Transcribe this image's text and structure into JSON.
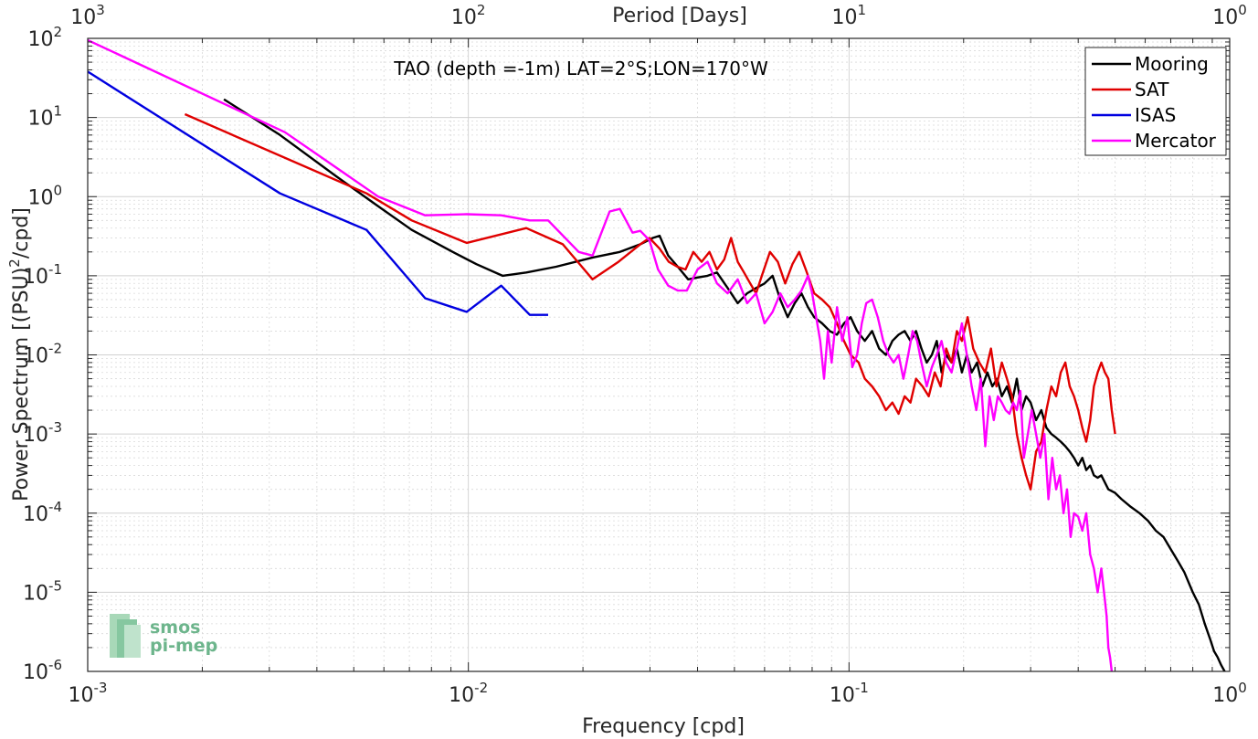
{
  "chart_data": {
    "type": "line",
    "title": "TAO (depth =-1m) LAT=2°S;LON=170°W",
    "xlabel": "Frequency [cpd]",
    "ylabel": "Power Spectrum [(PSU)",
    "ylabel_sup": "2",
    "ylabel_tail": "/cpd]",
    "top_xlabel": "Period [Days]",
    "x_scale": "log",
    "y_scale": "log",
    "xlim": [
      0.001,
      1
    ],
    "ylim": [
      1e-06,
      100
    ],
    "grid": true,
    "legend_position": "top-right",
    "x_ticks": [
      {
        "base": "10",
        "exp": "-3",
        "value": 0.001
      },
      {
        "base": "10",
        "exp": "-2",
        "value": 0.01
      },
      {
        "base": "10",
        "exp": "-1",
        "value": 0.1
      },
      {
        "base": "10",
        "exp": "0",
        "value": 1
      }
    ],
    "top_x_ticks": [
      {
        "base": "10",
        "exp": "3",
        "value": 0.001
      },
      {
        "base": "10",
        "exp": "2",
        "value": 0.01
      },
      {
        "base": "10",
        "exp": "1",
        "value": 0.1
      },
      {
        "base": "10",
        "exp": "0",
        "value": 1
      }
    ],
    "y_ticks": [
      {
        "base": "10",
        "exp": "2",
        "value": 100
      },
      {
        "base": "10",
        "exp": "1",
        "value": 10
      },
      {
        "base": "10",
        "exp": "0",
        "value": 1
      },
      {
        "base": "10",
        "exp": "-1",
        "value": 0.1
      },
      {
        "base": "10",
        "exp": "-2",
        "value": 0.01
      },
      {
        "base": "10",
        "exp": "-3",
        "value": 0.001
      },
      {
        "base": "10",
        "exp": "-4",
        "value": 0.0001
      },
      {
        "base": "10",
        "exp": "-5",
        "value": 1e-05
      },
      {
        "base": "10",
        "exp": "-6",
        "value": 1e-06
      }
    ],
    "series": [
      {
        "name": "Mooring",
        "color": "#000000",
        "x": [
          0.00228,
          0.0032,
          0.0045,
          0.0057,
          0.0071,
          0.0091,
          0.0105,
          0.0123,
          0.0142,
          0.017,
          0.0212,
          0.025,
          0.0283,
          0.0305,
          0.0318,
          0.0335,
          0.0355,
          0.0378,
          0.04,
          0.0425,
          0.045,
          0.048,
          0.051,
          0.054,
          0.057,
          0.06,
          0.063,
          0.066,
          0.069,
          0.072,
          0.075,
          0.078,
          0.081,
          0.085,
          0.089,
          0.093,
          0.097,
          0.101,
          0.105,
          0.11,
          0.115,
          0.12,
          0.125,
          0.13,
          0.135,
          0.14,
          0.145,
          0.15,
          0.155,
          0.16,
          0.165,
          0.17,
          0.175,
          0.18,
          0.186,
          0.192,
          0.198,
          0.204,
          0.21,
          0.217,
          0.224,
          0.231,
          0.238,
          0.245,
          0.252,
          0.26,
          0.268,
          0.276,
          0.284,
          0.292,
          0.3,
          0.31,
          0.32,
          0.33,
          0.34,
          0.35,
          0.36,
          0.37,
          0.38,
          0.39,
          0.4,
          0.41,
          0.42,
          0.43,
          0.44,
          0.45,
          0.46,
          0.48,
          0.5,
          0.52,
          0.55,
          0.58,
          0.61,
          0.64,
          0.67,
          0.7,
          0.73,
          0.76,
          0.8,
          0.83,
          0.86,
          0.89,
          0.91,
          0.93,
          0.95,
          0.97
        ],
        "y": [
          17,
          6,
          1.8,
          0.8,
          0.38,
          0.2,
          0.14,
          0.1,
          0.11,
          0.13,
          0.17,
          0.2,
          0.25,
          0.3,
          0.32,
          0.18,
          0.13,
          0.09,
          0.095,
          0.1,
          0.11,
          0.07,
          0.045,
          0.06,
          0.07,
          0.08,
          0.1,
          0.05,
          0.03,
          0.045,
          0.06,
          0.04,
          0.03,
          0.025,
          0.02,
          0.018,
          0.025,
          0.03,
          0.02,
          0.015,
          0.02,
          0.012,
          0.01,
          0.015,
          0.018,
          0.02,
          0.015,
          0.02,
          0.012,
          0.008,
          0.01,
          0.015,
          0.006,
          0.01,
          0.008,
          0.012,
          0.006,
          0.01,
          0.006,
          0.008,
          0.004,
          0.006,
          0.004,
          0.005,
          0.003,
          0.004,
          0.0025,
          0.005,
          0.002,
          0.003,
          0.0025,
          0.0015,
          0.002,
          0.0012,
          0.001,
          0.0009,
          0.0008,
          0.0007,
          0.0006,
          0.0005,
          0.0004,
          0.0005,
          0.00035,
          0.0004,
          0.0003,
          0.00028,
          0.0003,
          0.0002,
          0.00018,
          0.00015,
          0.00012,
          0.0001,
          8e-05,
          6e-05,
          5e-05,
          3.5e-05,
          2.5e-05,
          1.8e-05,
          1e-05,
          7e-06,
          4e-06,
          2.5e-06,
          1.8e-06,
          1.5e-06,
          1.2e-06,
          1e-06
        ]
      },
      {
        "name": "SAT",
        "color": "#e00000",
        "x": [
          0.0018,
          0.0054,
          0.0071,
          0.0099,
          0.0142,
          0.0177,
          0.0212,
          0.0248,
          0.0283,
          0.0299,
          0.0318,
          0.0336,
          0.0354,
          0.0372,
          0.039,
          0.041,
          0.043,
          0.045,
          0.047,
          0.049,
          0.051,
          0.053,
          0.055,
          0.057,
          0.059,
          0.062,
          0.065,
          0.068,
          0.071,
          0.074,
          0.077,
          0.081,
          0.085,
          0.089,
          0.093,
          0.097,
          0.101,
          0.106,
          0.11,
          0.115,
          0.12,
          0.125,
          0.13,
          0.135,
          0.14,
          0.145,
          0.15,
          0.156,
          0.162,
          0.168,
          0.174,
          0.18,
          0.186,
          0.192,
          0.198,
          0.205,
          0.212,
          0.22,
          0.228,
          0.236,
          0.244,
          0.252,
          0.26,
          0.268,
          0.276,
          0.284,
          0.292,
          0.3,
          0.31,
          0.32,
          0.33,
          0.34,
          0.35,
          0.36,
          0.37,
          0.38,
          0.39,
          0.4,
          0.41,
          0.42,
          0.43,
          0.44,
          0.45,
          0.46,
          0.47,
          0.48,
          0.49,
          0.5
        ],
        "y": [
          11,
          1.1,
          0.5,
          0.26,
          0.4,
          0.25,
          0.09,
          0.15,
          0.25,
          0.3,
          0.22,
          0.15,
          0.13,
          0.12,
          0.2,
          0.15,
          0.2,
          0.12,
          0.16,
          0.3,
          0.15,
          0.11,
          0.08,
          0.06,
          0.1,
          0.2,
          0.15,
          0.08,
          0.14,
          0.2,
          0.12,
          0.06,
          0.05,
          0.04,
          0.025,
          0.015,
          0.01,
          0.008,
          0.005,
          0.004,
          0.003,
          0.002,
          0.0025,
          0.0018,
          0.003,
          0.0025,
          0.005,
          0.004,
          0.003,
          0.006,
          0.004,
          0.012,
          0.008,
          0.02,
          0.015,
          0.03,
          0.012,
          0.008,
          0.006,
          0.012,
          0.004,
          0.008,
          0.005,
          0.003,
          0.001,
          0.0005,
          0.0003,
          0.0002,
          0.0006,
          0.0008,
          0.002,
          0.004,
          0.003,
          0.006,
          0.008,
          0.004,
          0.003,
          0.002,
          0.0012,
          0.0008,
          0.0015,
          0.004,
          0.006,
          0.008,
          0.006,
          0.005,
          0.002,
          0.001
        ]
      },
      {
        "name": "ISAS",
        "color": "#0000e0",
        "x": [
          0.001,
          0.0032,
          0.0054,
          0.0077,
          0.0099,
          0.0122,
          0.0145,
          0.0162
        ],
        "y": [
          38,
          1.1,
          0.38,
          0.052,
          0.035,
          0.075,
          0.032,
          0.032
        ]
      },
      {
        "name": "Mercator",
        "color": "#ff00ff",
        "x": [
          0.001,
          0.0033,
          0.0058,
          0.0077,
          0.0099,
          0.0122,
          0.0145,
          0.0162,
          0.0195,
          0.0212,
          0.0235,
          0.025,
          0.027,
          0.0283,
          0.0299,
          0.0315,
          0.0335,
          0.0355,
          0.0375,
          0.04,
          0.0425,
          0.045,
          0.048,
          0.051,
          0.054,
          0.057,
          0.06,
          0.063,
          0.066,
          0.069,
          0.072,
          0.075,
          0.078,
          0.08,
          0.082,
          0.084,
          0.086,
          0.088,
          0.09,
          0.093,
          0.096,
          0.099,
          0.102,
          0.105,
          0.108,
          0.111,
          0.115,
          0.119,
          0.123,
          0.127,
          0.131,
          0.135,
          0.139,
          0.143,
          0.147,
          0.151,
          0.155,
          0.16,
          0.165,
          0.17,
          0.175,
          0.18,
          0.186,
          0.192,
          0.198,
          0.204,
          0.21,
          0.216,
          0.222,
          0.228,
          0.234,
          0.24,
          0.246,
          0.252,
          0.258,
          0.264,
          0.27,
          0.276,
          0.282,
          0.288,
          0.295,
          0.302,
          0.31,
          0.318,
          0.326,
          0.334,
          0.342,
          0.35,
          0.358,
          0.366,
          0.374,
          0.382,
          0.39,
          0.4,
          0.41,
          0.42,
          0.43,
          0.44,
          0.45,
          0.46,
          0.47,
          0.475,
          0.48,
          0.485,
          0.49
        ],
        "y": [
          95,
          6.5,
          1.0,
          0.58,
          0.6,
          0.58,
          0.5,
          0.5,
          0.2,
          0.18,
          0.65,
          0.7,
          0.35,
          0.37,
          0.28,
          0.12,
          0.075,
          0.065,
          0.065,
          0.12,
          0.15,
          0.08,
          0.06,
          0.09,
          0.045,
          0.06,
          0.025,
          0.035,
          0.06,
          0.04,
          0.05,
          0.065,
          0.1,
          0.06,
          0.03,
          0.015,
          0.005,
          0.02,
          0.008,
          0.04,
          0.015,
          0.03,
          0.007,
          0.01,
          0.025,
          0.045,
          0.05,
          0.03,
          0.015,
          0.01,
          0.008,
          0.01,
          0.005,
          0.01,
          0.02,
          0.015,
          0.008,
          0.004,
          0.007,
          0.01,
          0.015,
          0.008,
          0.006,
          0.012,
          0.025,
          0.01,
          0.004,
          0.002,
          0.005,
          0.0007,
          0.003,
          0.0015,
          0.003,
          0.0025,
          0.002,
          0.0018,
          0.0025,
          0.002,
          0.0035,
          0.0005,
          0.001,
          0.002,
          0.001,
          0.0005,
          0.001,
          0.00015,
          0.0005,
          0.0002,
          0.0003,
          0.0001,
          0.0002,
          5e-05,
          0.0001,
          9e-05,
          6e-05,
          0.0001,
          3e-05,
          2e-05,
          1e-05,
          2e-05,
          8e-06,
          5e-06,
          2e-06,
          1.5e-06,
          1e-06
        ]
      }
    ]
  },
  "logo": {
    "line1": "smos",
    "line2": "pi-mep"
  }
}
